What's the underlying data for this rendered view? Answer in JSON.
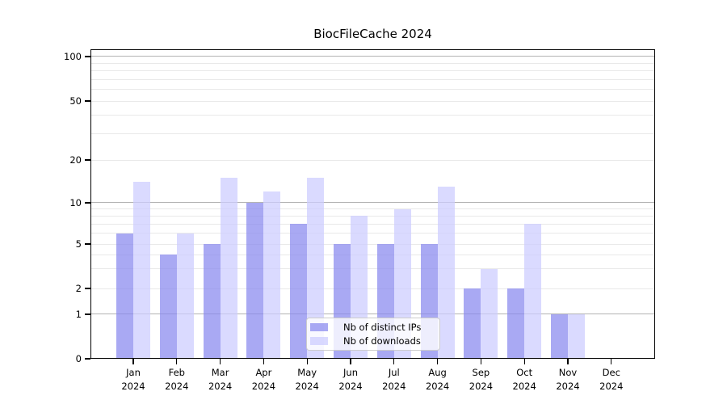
{
  "chart_data": {
    "type": "bar",
    "title": "BiocFileCache 2024",
    "categories": [
      "Jan",
      "Feb",
      "Mar",
      "Apr",
      "May",
      "Jun",
      "Jul",
      "Aug",
      "Sep",
      "Oct",
      "Nov",
      "Dec"
    ],
    "x_year_label": "2024",
    "series": [
      {
        "name": "Nb of distinct IPs",
        "color": "rgba(136,136,238,0.72)",
        "values": [
          6,
          4,
          5,
          10,
          7,
          5,
          5,
          5,
          2,
          2,
          1,
          0
        ]
      },
      {
        "name": "Nb of downloads",
        "color": "rgba(204,204,255,0.72)",
        "values": [
          14,
          6,
          15,
          12,
          15,
          8,
          9,
          13,
          3,
          7,
          1,
          0
        ]
      }
    ],
    "y_axis": {
      "tick_labels": [
        0,
        1,
        2,
        5,
        10,
        20,
        50,
        100
      ],
      "scale": "log-like",
      "ylim": [
        0,
        100
      ],
      "major_gridlines": [
        1,
        10,
        100
      ],
      "minor_gridlines": [
        2,
        3,
        4,
        5,
        6,
        7,
        8,
        9,
        20,
        30,
        40,
        50,
        60,
        70,
        80,
        90
      ]
    },
    "xlabel": "",
    "ylabel": "",
    "legend_position": "lower center inside plot",
    "colors": {
      "major_grid": "#b3b3b3",
      "minor_grid": "#e9e9e9",
      "frame": "#000000",
      "background": "#ffffff"
    }
  }
}
